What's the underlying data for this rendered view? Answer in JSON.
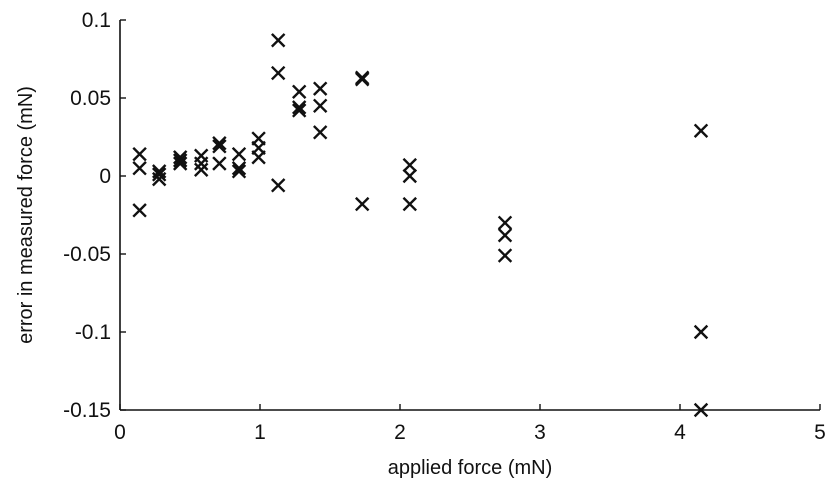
{
  "chart_data": {
    "type": "scatter",
    "title": "",
    "xlabel": "applied force (mN)",
    "ylabel": "error in measured force (mN)",
    "xlim": [
      0,
      5
    ],
    "ylim": [
      -0.15,
      0.1
    ],
    "xticks": [
      0,
      1,
      2,
      3,
      4,
      5
    ],
    "xtick_labels": [
      "0",
      "1",
      "2",
      "3",
      "4",
      "5"
    ],
    "yticks": [
      0.1,
      0.05,
      0,
      -0.05,
      -0.1,
      -0.15
    ],
    "ytick_labels": [
      "0.1",
      "0.05",
      "0",
      "-0.05",
      "-0.1",
      "-0.15"
    ],
    "grid": false,
    "legend": "none",
    "marker": "x",
    "marker_color": "#111111",
    "series": [
      {
        "points": [
          [
            0.14,
            0.014
          ],
          [
            0.14,
            0.005
          ],
          [
            0.14,
            -0.022
          ],
          [
            0.28,
            0.003
          ],
          [
            0.28,
            0.001
          ],
          [
            0.28,
            -0.002
          ],
          [
            0.43,
            0.012
          ],
          [
            0.43,
            0.01
          ],
          [
            0.43,
            0.008
          ],
          [
            0.58,
            0.013
          ],
          [
            0.58,
            0.008
          ],
          [
            0.58,
            0.004
          ],
          [
            0.71,
            0.021
          ],
          [
            0.71,
            0.019
          ],
          [
            0.71,
            0.008
          ],
          [
            0.85,
            0.014
          ],
          [
            0.85,
            0.005
          ],
          [
            0.85,
            0.003
          ],
          [
            0.99,
            0.024
          ],
          [
            0.99,
            0.018
          ],
          [
            0.99,
            0.012
          ],
          [
            1.13,
            0.087
          ],
          [
            1.13,
            0.066
          ],
          [
            1.13,
            -0.006
          ],
          [
            1.28,
            0.054
          ],
          [
            1.28,
            0.044
          ],
          [
            1.28,
            0.042
          ],
          [
            1.43,
            0.056
          ],
          [
            1.43,
            0.045
          ],
          [
            1.43,
            0.028
          ],
          [
            1.73,
            0.063
          ],
          [
            1.73,
            0.062
          ],
          [
            1.73,
            -0.018
          ],
          [
            2.07,
            0.007
          ],
          [
            2.07,
            0.0
          ],
          [
            2.07,
            -0.018
          ],
          [
            2.75,
            -0.03
          ],
          [
            2.75,
            -0.038
          ],
          [
            2.75,
            -0.051
          ],
          [
            4.15,
            0.029
          ],
          [
            4.15,
            -0.1
          ],
          [
            4.15,
            -0.15
          ]
        ]
      }
    ]
  }
}
